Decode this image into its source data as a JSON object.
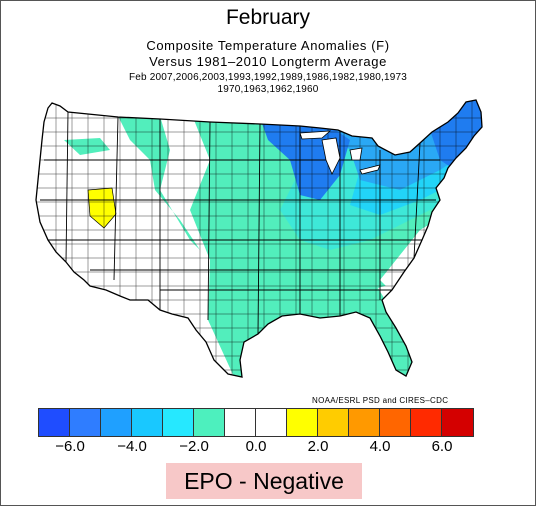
{
  "title": "February",
  "subtitle_line1": "Composite Temperature Anomalies (F)",
  "subtitle_line2": "Versus 1981–2010 Longterm Average",
  "years_line1": "Feb   2007,2006,2003,1993,1992,1989,1986,1982,1980,1973",
  "years_line2": "1970,1963,1962,1960",
  "credit": "NOAA/ESRL PSD and CIRES–CDC",
  "colorbar": {
    "colors": [
      "#1f4dff",
      "#2f7dff",
      "#1fa0ff",
      "#19c8ff",
      "#26e8ff",
      "#4df0be",
      "#ffffff",
      "#ffffff",
      "#ffff00",
      "#ffcc00",
      "#ff9900",
      "#ff6600",
      "#ff2a00",
      "#d40000"
    ],
    "tick_labels": [
      "−6.0",
      "−4.0",
      "−2.0",
      "0.0",
      "2.0",
      "4.0",
      "6.0"
    ]
  },
  "badge_label": "EPO - Negative",
  "colors": {
    "blue_dark": "#1f7cf0",
    "blue_mid": "#2aa8f5",
    "cyan": "#22d4f8",
    "aqua": "#3ee8d8",
    "green_aqua": "#52eebc",
    "yellow": "#ffff00",
    "white": "#ffffff"
  }
}
